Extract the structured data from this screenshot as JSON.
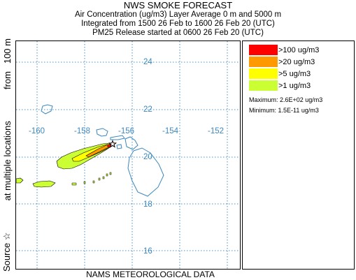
{
  "header": {
    "title": "NWS SMOKE FORECAST",
    "line1": "Air Concentration (ug/m3) Layer Average     0 m  and  5000 m",
    "line2": "Integrated from 1500 26 Feb to 1600 26 Feb 20 (UTC)",
    "line3": "PM25 Release started at 0600 26 Feb 20 (UTC)"
  },
  "side_label": {
    "source": "Source ☆",
    "multiple": "at multiple locations",
    "from": "from   100 m"
  },
  "map": {
    "lat_labels": [
      "24",
      "22",
      "20",
      "18",
      "16"
    ],
    "lon_labels": [
      "-160",
      "-158",
      "-156",
      "-154",
      "-152"
    ],
    "grid_color": "#4a90c8",
    "coast_color": "#3a88c0",
    "source_marker": "star-icon"
  },
  "footer": "NAMS METEOROLOGICAL DATA",
  "legend": {
    "items": [
      {
        "label": ">100 ug/m3",
        "color": "#ff0000"
      },
      {
        "label": ">20 ug/m3",
        "color": "#ff9900"
      },
      {
        "label": ">5 ug/m3",
        "color": "#ffff00"
      },
      {
        "label": ">1 ug/m3",
        "color": "#ccff33"
      }
    ],
    "maximum": "Maximum: 2.6E+02 ug/m3",
    "minimum": "Minimum: 1.5E-11 ug/m3"
  }
}
